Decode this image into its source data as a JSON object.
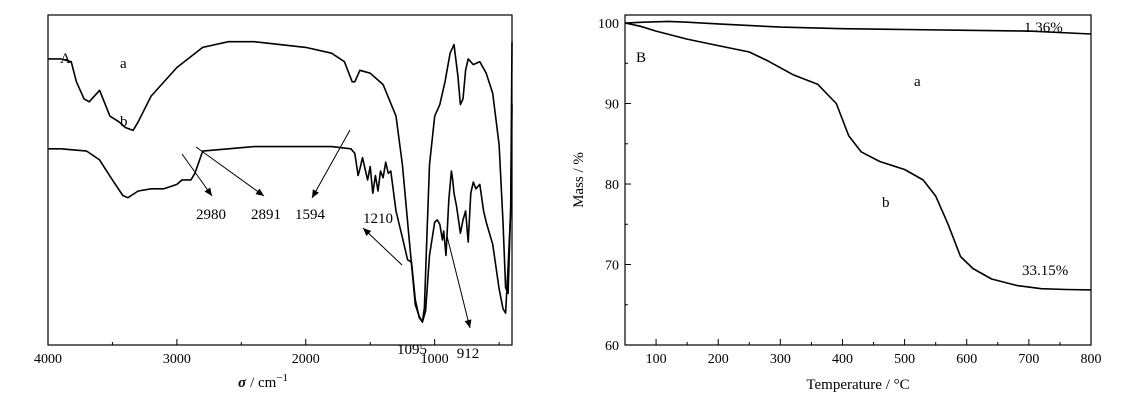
{
  "chart_data": [
    {
      "type": "line",
      "panel_label": "A",
      "xlabel_symbol": "σ",
      "xlabel_unit": "/ cm",
      "xlabel_exponent": "−1",
      "x_reversed": true,
      "xlim": [
        4000,
        400
      ],
      "x_ticks": [
        4000,
        3000,
        2000,
        1000
      ],
      "x_tick_labels": [
        "4000",
        "3000",
        "2000",
        "1000"
      ],
      "y_ticks_shown": false,
      "series": [
        {
          "name": "a",
          "x": [
            4000,
            3900,
            3820,
            3780,
            3720,
            3680,
            3600,
            3520,
            3450,
            3400,
            3340,
            3300,
            3200,
            3000,
            2800,
            2600,
            2400,
            2200,
            2000,
            1800,
            1700,
            1640,
            1620,
            1580,
            1500,
            1400,
            1300,
            1250,
            1200,
            1150,
            1120,
            1095,
            1080,
            1060,
            1040,
            1000,
            960,
            920,
            880,
            850,
            820,
            800,
            780,
            760,
            740,
            700,
            650,
            600,
            550,
            500,
            470,
            450,
            430,
            410,
            400
          ],
          "y": [
            0.92,
            0.92,
            0.91,
            0.84,
            0.78,
            0.77,
            0.81,
            0.72,
            0.7,
            0.68,
            0.67,
            0.7,
            0.79,
            0.89,
            0.96,
            0.98,
            0.98,
            0.97,
            0.96,
            0.94,
            0.91,
            0.84,
            0.84,
            0.88,
            0.87,
            0.83,
            0.72,
            0.55,
            0.3,
            0.06,
            0.02,
            0.0,
            0.05,
            0.3,
            0.55,
            0.72,
            0.76,
            0.84,
            0.94,
            0.97,
            0.86,
            0.76,
            0.78,
            0.88,
            0.92,
            0.9,
            0.91,
            0.87,
            0.8,
            0.62,
            0.35,
            0.12,
            0.1,
            0.4,
            0.98
          ]
        },
        {
          "name": "b",
          "x": [
            4000,
            3900,
            3700,
            3600,
            3500,
            3420,
            3380,
            3300,
            3200,
            3100,
            3000,
            2980,
            2960,
            2891,
            2860,
            2800,
            2600,
            2400,
            2000,
            1800,
            1650,
            1620,
            1594,
            1580,
            1560,
            1520,
            1500,
            1480,
            1460,
            1440,
            1420,
            1400,
            1380,
            1360,
            1340,
            1300,
            1250,
            1210,
            1180,
            1150,
            1120,
            1095,
            1070,
            1040,
            1000,
            980,
            960,
            940,
            930,
            912,
            890,
            870,
            860,
            850,
            830,
            800,
            780,
            760,
            740,
            720,
            700,
            680,
            650,
            620,
            600,
            550,
            500,
            470,
            450,
            430,
            410,
            400
          ],
          "y": [
            0.78,
            0.78,
            0.77,
            0.73,
            0.64,
            0.57,
            0.56,
            0.59,
            0.6,
            0.6,
            0.62,
            0.63,
            0.64,
            0.64,
            0.67,
            0.77,
            0.78,
            0.79,
            0.79,
            0.79,
            0.78,
            0.76,
            0.66,
            0.69,
            0.74,
            0.64,
            0.7,
            0.58,
            0.66,
            0.59,
            0.68,
            0.65,
            0.72,
            0.67,
            0.68,
            0.5,
            0.38,
            0.28,
            0.27,
            0.1,
            0.02,
            0.0,
            0.05,
            0.3,
            0.45,
            0.46,
            0.44,
            0.37,
            0.41,
            0.3,
            0.55,
            0.68,
            0.64,
            0.58,
            0.52,
            0.4,
            0.46,
            0.5,
            0.36,
            0.58,
            0.63,
            0.6,
            0.62,
            0.5,
            0.45,
            0.35,
            0.15,
            0.06,
            0.04,
            0.25,
            0.5,
            0.98
          ]
        }
      ],
      "annotations": [
        {
          "text": "2980",
          "target_x": 2980,
          "target_series": "b"
        },
        {
          "text": "2891",
          "target_x": 2891,
          "target_series": "b"
        },
        {
          "text": "1594",
          "target_x": 1594,
          "target_series": "b"
        },
        {
          "text": "1210",
          "target_x": 1210,
          "target_series": "b"
        },
        {
          "text": "1095",
          "target_x": 1095,
          "target_series": "a"
        },
        {
          "text": "912",
          "target_x": 912,
          "target_series": "b"
        }
      ],
      "grid": false
    },
    {
      "type": "line",
      "panel_label": "B",
      "xlabel": "Temperature / °C",
      "ylabel": "Mass / %",
      "xlim": [
        50,
        800
      ],
      "ylim": [
        60,
        101
      ],
      "x_ticks": [
        100,
        200,
        300,
        400,
        500,
        600,
        700,
        800
      ],
      "y_ticks": [
        60,
        70,
        80,
        90,
        100
      ],
      "series": [
        {
          "name": "a",
          "x": [
            50,
            80,
            120,
            150,
            200,
            300,
            400,
            500,
            600,
            700,
            800
          ],
          "y": [
            100.0,
            100.1,
            100.2,
            100.1,
            99.9,
            99.5,
            99.3,
            99.2,
            99.1,
            99.0,
            98.64
          ]
        },
        {
          "name": "b",
          "x": [
            50,
            75,
            100,
            150,
            200,
            250,
            280,
            320,
            360,
            390,
            410,
            430,
            460,
            500,
            530,
            550,
            570,
            590,
            610,
            640,
            680,
            720,
            760,
            800
          ],
          "y": [
            100.0,
            99.6,
            99.0,
            98.0,
            97.2,
            96.4,
            95.3,
            93.6,
            92.4,
            90.0,
            86.0,
            84.0,
            82.8,
            81.8,
            80.5,
            78.5,
            75.0,
            71.0,
            69.5,
            68.2,
            67.4,
            67.0,
            66.9,
            66.85
          ]
        }
      ],
      "annotations": [
        {
          "text": "1.36%",
          "series": "a"
        },
        {
          "text": "33.15%",
          "series": "b"
        }
      ],
      "grid": false
    }
  ]
}
